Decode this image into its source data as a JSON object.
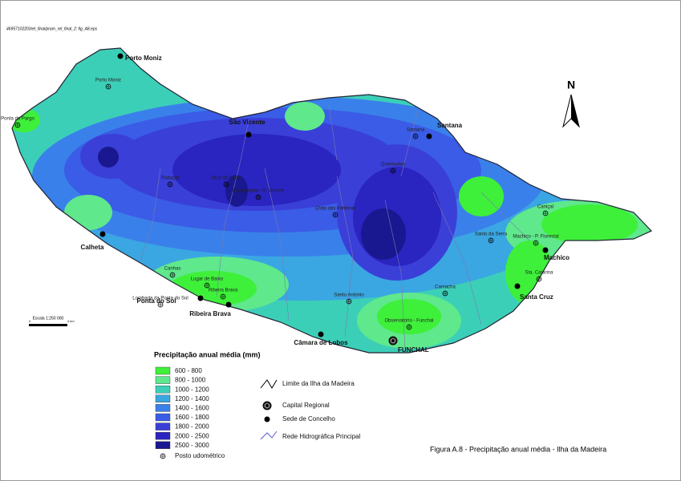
{
  "file_name": "46957102203rel_final/pram_rel_final_2: fig_A8.eps",
  "north_label": "N",
  "caption": "Figura A.8 - Precipitação anual média - Ilha da Madeira",
  "scale": {
    "title": "Escala 1:250 000",
    "start": "0",
    "end": "4 km"
  },
  "towns": [
    "Porto Moniz",
    "São Vicente",
    "Santana",
    "Machico",
    "Santa Cruz",
    "FUNCHAL",
    "Câmara de Lobos",
    "Ribeira Brava",
    "Ponta do Sol",
    "Calheta"
  ],
  "stations": [
    "Ponta do Pargo",
    "Porto Moniz",
    "Rabaçal",
    "Bica da Cana",
    "Encumeada - S. Vicente",
    "Chão das Feiteiras",
    "Queimadas",
    "Santana",
    "Santo da Serra",
    "Machico - P. Florestal",
    "Sta. Catarina",
    "Caniçal",
    "Camacha",
    "Santo António",
    "Observatório - Funchal",
    "Lugar de Baixo",
    "Ribeira Brava",
    "Canhas",
    "Lombada da Ponta do Sol"
  ],
  "legend": {
    "title": "Precipitação anual média (mm)",
    "classes": [
      {
        "label": "600 - 800",
        "color": "#3ef03a"
      },
      {
        "label": "800 - 1000",
        "color": "#5fe88c"
      },
      {
        "label": "1000 - 1200",
        "color": "#3ccfb8"
      },
      {
        "label": "1200 - 1400",
        "color": "#3aa6e2"
      },
      {
        "label": "1400 - 1600",
        "color": "#3a80ea"
      },
      {
        "label": "1600 - 1800",
        "color": "#3a5ce6"
      },
      {
        "label": "1800 - 2000",
        "color": "#3a3fd8"
      },
      {
        "label": "2000 - 2500",
        "color": "#2a24c0"
      },
      {
        "label": "2500 - 3000",
        "color": "#1a1890"
      }
    ],
    "station_label": "Posto udométrico"
  },
  "symbols": [
    "Limite da Ilha da Madeira",
    "Capital Regional",
    "Sede de Concelho",
    "Rede Hidrográfica Principal"
  ]
}
